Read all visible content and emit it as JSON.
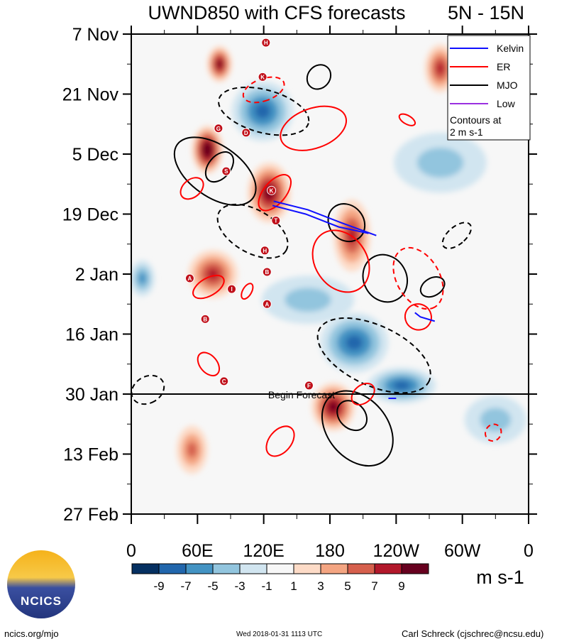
{
  "chart_data": {
    "type": "heatmap",
    "title": "UWND850 with CFS forecasts",
    "subtitle": "5N - 15N",
    "xlabel": "",
    "ylabel": "",
    "xlim": [
      0,
      360
    ],
    "ylim_days_from_start": [
      0,
      112
    ],
    "x_ticks": [
      {
        "lon": 0,
        "label": "0"
      },
      {
        "lon": 60,
        "label": "60E"
      },
      {
        "lon": 120,
        "label": "120E"
      },
      {
        "lon": 180,
        "label": "180"
      },
      {
        "lon": 240,
        "label": "120W"
      },
      {
        "lon": 300,
        "label": "60W"
      },
      {
        "lon": 360,
        "label": "0"
      }
    ],
    "y_ticks": [
      {
        "day": 0,
        "label": "7 Nov"
      },
      {
        "day": 14,
        "label": "21 Nov"
      },
      {
        "day": 28,
        "label": "5 Dec"
      },
      {
        "day": 42,
        "label": "19 Dec"
      },
      {
        "day": 56,
        "label": "2 Jan"
      },
      {
        "day": 70,
        "label": "16 Jan"
      },
      {
        "day": 84,
        "label": "30 Jan"
      },
      {
        "day": 98,
        "label": "13 Feb"
      },
      {
        "day": 112,
        "label": "27 Feb"
      }
    ],
    "forecast_start_day": 84,
    "forecast_label": "Begin Forecast",
    "colorbar": {
      "unit": "m s-1",
      "labels": [
        "-9",
        "-7",
        "-5",
        "-3",
        "-1",
        "1",
        "3",
        "5",
        "7",
        "9"
      ],
      "colors": [
        "#053061",
        "#2166ac",
        "#4393c3",
        "#92c5de",
        "#d1e5f0",
        "#f7f7f7",
        "#fddbc7",
        "#f4a582",
        "#d6604d",
        "#b2182b",
        "#67001f"
      ]
    },
    "anomalies": [
      {
        "lon": 69,
        "day": 27,
        "value": 10,
        "dlon": 10,
        "dday": 4
      },
      {
        "lon": 125,
        "day": 37,
        "value": 9,
        "dlon": 14,
        "dday": 5
      },
      {
        "lon": 183,
        "day": 87,
        "value": 8,
        "dlon": 14,
        "dday": 4
      },
      {
        "lon": 80,
        "day": 7,
        "value": 8,
        "dlon": 8,
        "dday": 3
      },
      {
        "lon": 280,
        "day": 8,
        "value": 7,
        "dlon": 10,
        "dday": 4
      },
      {
        "lon": 74,
        "day": 56,
        "value": 6,
        "dlon": 16,
        "dday": 4
      },
      {
        "lon": 200,
        "day": 47,
        "value": 6,
        "dlon": 12,
        "dday": 6
      },
      {
        "lon": 55,
        "day": 97,
        "value": 4,
        "dlon": 10,
        "dday": 4
      },
      {
        "lon": 119,
        "day": 18,
        "value": -6,
        "dlon": 20,
        "dday": 5
      },
      {
        "lon": 202,
        "day": 72,
        "value": -6,
        "dlon": 22,
        "dday": 5
      },
      {
        "lon": 245,
        "day": 82,
        "value": -6,
        "dlon": 22,
        "dday": 3
      },
      {
        "lon": 10,
        "day": 57,
        "value": -4,
        "dlon": 8,
        "dday": 3
      },
      {
        "lon": 160,
        "day": 62,
        "value": -3,
        "dlon": 30,
        "dday": 4
      },
      {
        "lon": 330,
        "day": 90,
        "value": -3,
        "dlon": 20,
        "dday": 4
      },
      {
        "lon": 280,
        "day": 30,
        "value": -2,
        "dlon": 30,
        "dday": 5
      }
    ],
    "legend": {
      "placement": "top-right",
      "entries": [
        {
          "name": "Kelvin",
          "color": "#1010ff"
        },
        {
          "name": "ER",
          "color": "#ff0000"
        },
        {
          "name": "MJO",
          "color": "#000000"
        },
        {
          "name": "Low",
          "color": "#9a30e0"
        }
      ],
      "note": [
        "Contours at",
        "2 m s-1"
      ]
    },
    "contours": [
      {
        "type": "MJO",
        "lon": 76,
        "day": 32,
        "dlon": 42,
        "dday": 6,
        "tilt": 35,
        "dash": false
      },
      {
        "type": "MJO",
        "lon": 80,
        "day": 31,
        "dlon": 10,
        "dday": 4,
        "tilt": 40,
        "dash": false
      },
      {
        "type": "MJO",
        "lon": 170,
        "day": 10,
        "dlon": 10,
        "dday": 3,
        "tilt": 40,
        "dash": false
      },
      {
        "type": "MJO",
        "lon": 120,
        "day": 18,
        "dlon": 42,
        "dday": 5,
        "tilt": 15,
        "dash": true
      },
      {
        "type": "MJO",
        "lon": 110,
        "day": 46,
        "dlon": 35,
        "dday": 5,
        "tilt": 30,
        "dash": true
      },
      {
        "type": "MJO",
        "lon": 195,
        "day": 44,
        "dlon": 18,
        "dday": 4,
        "tilt": 50,
        "dash": false
      },
      {
        "type": "MJO",
        "lon": 230,
        "day": 57,
        "dlon": 22,
        "dday": 5,
        "tilt": 60,
        "dash": false
      },
      {
        "type": "MJO",
        "lon": 273,
        "day": 59,
        "dlon": 8,
        "dday": 3,
        "tilt": 60,
        "dash": false
      },
      {
        "type": "MJO",
        "lon": 220,
        "day": 75,
        "dlon": 55,
        "dday": 7,
        "tilt": 25,
        "dash": true
      },
      {
        "type": "MJO",
        "lon": 205,
        "day": 92,
        "dlon": 38,
        "dday": 7,
        "tilt": 50,
        "dash": false
      },
      {
        "type": "MJO",
        "lon": 200,
        "day": 89,
        "dlon": 15,
        "dday": 3,
        "tilt": 45,
        "dash": false
      },
      {
        "type": "MJO",
        "lon": 15,
        "day": 83,
        "dlon": 12,
        "dday": 4,
        "tilt": 60,
        "dash": true
      },
      {
        "type": "MJO",
        "lon": 295,
        "day": 47,
        "dlon": 8,
        "dday": 4,
        "tilt": 50,
        "dash": true
      },
      {
        "type": "ER",
        "lon": 165,
        "day": 22,
        "dlon": 18,
        "dday": 8,
        "tilt": 70,
        "dash": false
      },
      {
        "type": "ER",
        "lon": 120,
        "day": 13,
        "dlon": 10,
        "dday": 5,
        "tilt": 70,
        "dash": true
      },
      {
        "type": "ER",
        "lon": 55,
        "day": 36,
        "dlon": 8,
        "dday": 3,
        "tilt": 50,
        "dash": false
      },
      {
        "type": "ER",
        "lon": 130,
        "day": 37,
        "dlon": 10,
        "dday": 5,
        "tilt": 40,
        "dash": false
      },
      {
        "type": "ER",
        "lon": 190,
        "day": 53,
        "dlon": 30,
        "dday": 6,
        "tilt": 55,
        "dash": false
      },
      {
        "type": "ER",
        "lon": 260,
        "day": 57,
        "dlon": 30,
        "dday": 5,
        "tilt": 60,
        "dash": true
      },
      {
        "type": "ER",
        "lon": 260,
        "day": 66,
        "dlon": 12,
        "dday": 3,
        "tilt": 30,
        "dash": false
      },
      {
        "type": "ER",
        "lon": 70,
        "day": 59,
        "dlon": 8,
        "dday": 4,
        "tilt": 60,
        "dash": false
      },
      {
        "type": "ER",
        "lon": 105,
        "day": 60,
        "dlon": 4,
        "dday": 2,
        "tilt": 30,
        "dash": false
      },
      {
        "type": "ER",
        "lon": 70,
        "day": 77,
        "dlon": 12,
        "dday": 2,
        "tilt": 50,
        "dash": false
      },
      {
        "type": "ER",
        "lon": 135,
        "day": 95,
        "dlon": 10,
        "dday": 4,
        "tilt": 40,
        "dash": false
      },
      {
        "type": "ER",
        "lon": 210,
        "day": 84,
        "dlon": 8,
        "dday": 3,
        "tilt": 50,
        "dash": false
      },
      {
        "type": "ER",
        "lon": 328,
        "day": 93,
        "dlon": 7,
        "dday": 2,
        "tilt": 30,
        "dash": true
      },
      {
        "type": "ER",
        "lon": 250,
        "day": 20,
        "dlon": 8,
        "dday": 1,
        "tilt": 30,
        "dash": false
      }
    ],
    "kelvin": [
      {
        "lon": [
          129,
          160,
          190,
          222
        ],
        "day": [
          39,
          41,
          44,
          47
        ]
      },
      {
        "lon": [
          128,
          158,
          188,
          215
        ],
        "day": [
          40,
          42,
          45,
          46.5
        ]
      },
      {
        "lon": [
          257,
          262,
          275
        ],
        "day": [
          65,
          66,
          67
        ]
      },
      {
        "lon": [
          233,
          240
        ],
        "day": [
          85,
          85
        ]
      }
    ],
    "storms": [
      {
        "label": "H",
        "lon": 122,
        "day": 2
      },
      {
        "label": "K",
        "lon": 119,
        "day": 10
      },
      {
        "label": "G",
        "lon": 79,
        "day": 22
      },
      {
        "label": "D",
        "lon": 104,
        "day": 23
      },
      {
        "label": "S",
        "lon": 86,
        "day": 32
      },
      {
        "label": "K",
        "lon": 127,
        "day": 36.5
      },
      {
        "label": "T",
        "lon": 131,
        "day": 43.5
      },
      {
        "label": "H",
        "lon": 121,
        "day": 50.5
      },
      {
        "label": "A",
        "lon": 53,
        "day": 57
      },
      {
        "label": "B",
        "lon": 123,
        "day": 55.5
      },
      {
        "label": "I",
        "lon": 91,
        "day": 59.5
      },
      {
        "label": "A",
        "lon": 123,
        "day": 63
      },
      {
        "label": "B",
        "lon": 67,
        "day": 66.5
      },
      {
        "label": "C",
        "lon": 84,
        "day": 81
      },
      {
        "label": "F",
        "lon": 161,
        "day": 82
      }
    ]
  },
  "footer": {
    "left": "ncics.org/mjo",
    "center": "Wed 2018-01-31 1113 UTC",
    "right": "Carl Schreck (cjschrec@ncsu.edu)",
    "logo": "NCICS"
  }
}
